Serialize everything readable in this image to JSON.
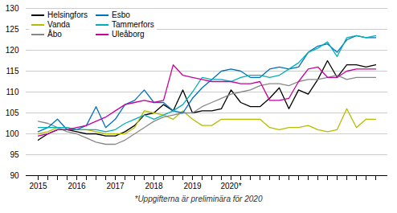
{
  "chart_data": {
    "type": "line",
    "footnote": "*Uppgifterna är preliminära för 2020",
    "categories": [
      "2015",
      null,
      null,
      null,
      "2016",
      null,
      null,
      null,
      "2017",
      null,
      null,
      null,
      "2018",
      null,
      null,
      null,
      "2019",
      null,
      null,
      null,
      "2020*",
      null,
      null,
      null,
      null,
      null,
      null,
      null,
      null,
      null,
      null,
      null,
      null,
      null,
      null,
      null
    ],
    "ylim": [
      90,
      130
    ],
    "yticks": [
      90,
      95,
      100,
      105,
      110,
      115,
      120,
      125,
      130
    ],
    "grid": true,
    "legend": "upper left",
    "series": [
      {
        "name": "Helsingfors",
        "color": "#000000",
        "values": [
          98.5,
          100.0,
          101.0,
          101.0,
          100.5,
          100.0,
          100.0,
          99.5,
          99.5,
          100.5,
          102.0,
          104.5,
          105.0,
          107.0,
          105.5,
          110.5,
          105.0,
          105.5,
          105.5,
          106.0,
          110.5,
          107.5,
          106.5,
          106.5,
          108.5,
          111.0,
          106.0,
          110.5,
          109.5,
          113.0,
          117.5,
          113.5,
          116.5,
          116.5,
          116.0,
          116.5
        ]
      },
      {
        "name": "Vanda",
        "color": "#b5bd00",
        "values": [
          100.0,
          100.5,
          101.5,
          101.5,
          101.0,
          101.0,
          100.5,
          100.0,
          100.0,
          100.0,
          101.5,
          105.5,
          105.0,
          104.5,
          103.5,
          105.5,
          103.5,
          102.0,
          102.0,
          103.5,
          103.5,
          103.5,
          103.5,
          103.5,
          101.5,
          101.0,
          101.5,
          101.5,
          102.0,
          101.0,
          100.5,
          101.0,
          106.0,
          101.5,
          103.5,
          103.5
        ]
      },
      {
        "name": "Åbo",
        "color": "#888888",
        "values": [
          103.0,
          102.5,
          101.5,
          100.5,
          100.0,
          99.0,
          98.0,
          97.5,
          97.5,
          98.5,
          100.0,
          101.5,
          103.0,
          104.0,
          104.5,
          105.0,
          105.0,
          106.5,
          107.5,
          108.5,
          109.5,
          110.0,
          110.5,
          111.5,
          112.0,
          112.0,
          111.5,
          112.5,
          113.0,
          113.0,
          113.5,
          114.0,
          113.0,
          113.5,
          113.5,
          113.5
        ]
      },
      {
        "name": "Esbo",
        "color": "#0070c0",
        "values": [
          100.5,
          101.5,
          103.5,
          101.0,
          101.0,
          102.0,
          106.5,
          101.5,
          103.5,
          107.0,
          108.0,
          110.5,
          107.5,
          107.5,
          105.5,
          105.0,
          108.5,
          111.0,
          113.0,
          115.0,
          115.5,
          115.0,
          113.5,
          113.5,
          115.5,
          116.0,
          115.5,
          116.0,
          119.5,
          121.0,
          121.5,
          119.5,
          122.5,
          123.5,
          123.0,
          123.0
        ]
      },
      {
        "name": "Tammerfors",
        "color": "#00b0b8",
        "values": [
          101.5,
          101.5,
          101.5,
          101.5,
          101.0,
          101.0,
          101.0,
          100.5,
          101.0,
          102.5,
          103.5,
          104.5,
          103.5,
          104.5,
          105.5,
          107.0,
          110.0,
          113.5,
          113.0,
          113.0,
          112.5,
          113.5,
          114.0,
          114.0,
          113.5,
          114.0,
          115.5,
          117.0,
          119.5,
          120.5,
          122.0,
          118.5,
          123.0,
          123.5,
          123.0,
          123.5
        ]
      },
      {
        "name": "Uleåborg",
        "color": "#c800a0",
        "values": [
          99.5,
          100.0,
          101.0,
          101.0,
          101.5,
          102.0,
          103.0,
          104.0,
          105.5,
          107.0,
          107.5,
          108.0,
          107.5,
          108.0,
          116.5,
          114.0,
          113.5,
          113.0,
          112.5,
          112.5,
          112.5,
          112.0,
          112.0,
          112.5,
          108.0,
          108.0,
          108.5,
          112.5,
          115.5,
          116.0,
          113.5,
          113.5,
          115.0,
          115.5,
          115.5,
          115.5
        ]
      }
    ]
  }
}
